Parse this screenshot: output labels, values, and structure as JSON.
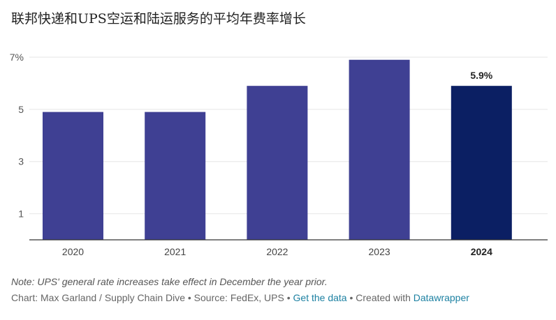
{
  "title": "联邦快递和UPS空运和陆运服务的平均年费率增长",
  "colors": {
    "bar": "#3f4093",
    "bar_highlight": "#0b1f63",
    "grid": "#e6e6e6",
    "axis": "#333333"
  },
  "chart_data": {
    "type": "bar",
    "title": "联邦快递和UPS空运和陆运服务的平均年费率增长",
    "categories": [
      "2020",
      "2021",
      "2022",
      "2023",
      "2024"
    ],
    "values": [
      4.9,
      4.9,
      5.9,
      6.9,
      5.9
    ],
    "highlight_index": 4,
    "data_labels": [
      null,
      null,
      null,
      null,
      "5.9%"
    ],
    "ylim": [
      0,
      7
    ],
    "yticks": [
      1,
      3,
      5,
      7
    ],
    "ytick_labels": [
      "1",
      "3",
      "5",
      "7%"
    ],
    "xlabel": "",
    "ylabel": "",
    "grid": true
  },
  "note": "Note: UPS' general rate increases take effect in December the year prior.",
  "footer": {
    "credit": "Chart: Max Garland / Supply Chain Dive • Source: FedEx, UPS • ",
    "get_data_link": "Get the data",
    "middle": " • Created with ",
    "datawrapper_link": "Datawrapper"
  }
}
